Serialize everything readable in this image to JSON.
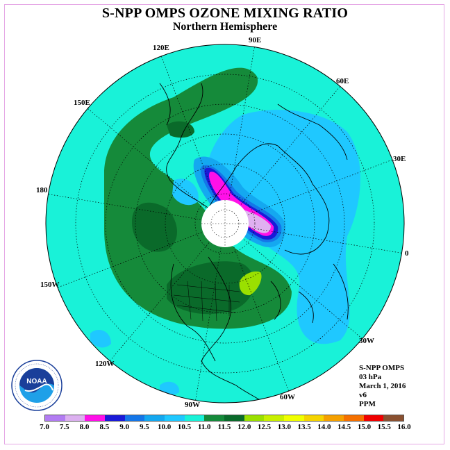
{
  "title": "S-NPP OMPS OZONE MIXING RATIO",
  "subtitle": "Northern Hemisphere",
  "longitude_labels": {
    "e120": "120E",
    "e90": "90E",
    "e60": "60E",
    "e150": "150E",
    "e30": "30E",
    "d180": "180",
    "d0": "0",
    "w150": "150W",
    "w30": "30W",
    "w120": "120W",
    "w60": "60W",
    "w90": "90W"
  },
  "info": {
    "product": "S-NPP OMPS",
    "level": "03 hPa",
    "date": "March 1, 2016",
    "version": "v6",
    "units": "PPM"
  },
  "logo": {
    "text": "NOAA",
    "ring_text": "NATIONAL OCEANIC AND ATMOSPHERIC ADMINISTRATION · U.S. DEPARTMENT OF COMMERCE"
  },
  "colors": {
    "ocean_base": "#19f2d8",
    "dark_green": "#0a6a2a",
    "green": "#158a3a",
    "light_blue": "#1fc8ff",
    "mid_blue": "#14a8f0",
    "blue": "#1476e8",
    "deep_blue": "#1a1ad8",
    "magenta": "#ff10e8",
    "lavender": "#e0b0f0",
    "yellow_green": "#9ae000",
    "frame": "#e6a8e6"
  },
  "colorbar": {
    "ticks": [
      "7.0",
      "7.5",
      "8.0",
      "8.5",
      "9.0",
      "9.5",
      "10.0",
      "10.5",
      "11.0",
      "11.5",
      "12.0",
      "12.5",
      "13.0",
      "13.5",
      "14.0",
      "14.5",
      "15.0",
      "15.5",
      "16.0"
    ],
    "colors": [
      "#b27cf2",
      "#dcb0f0",
      "#ff10e8",
      "#1a1ad8",
      "#1476e8",
      "#14a8f0",
      "#1fc8ff",
      "#19f2d8",
      "#158a3a",
      "#0a6a2a",
      "#9ae000",
      "#c8f000",
      "#f0ff00",
      "#f5d400",
      "#f5a000",
      "#f57000",
      "#f00000",
      "#8a5030"
    ]
  }
}
